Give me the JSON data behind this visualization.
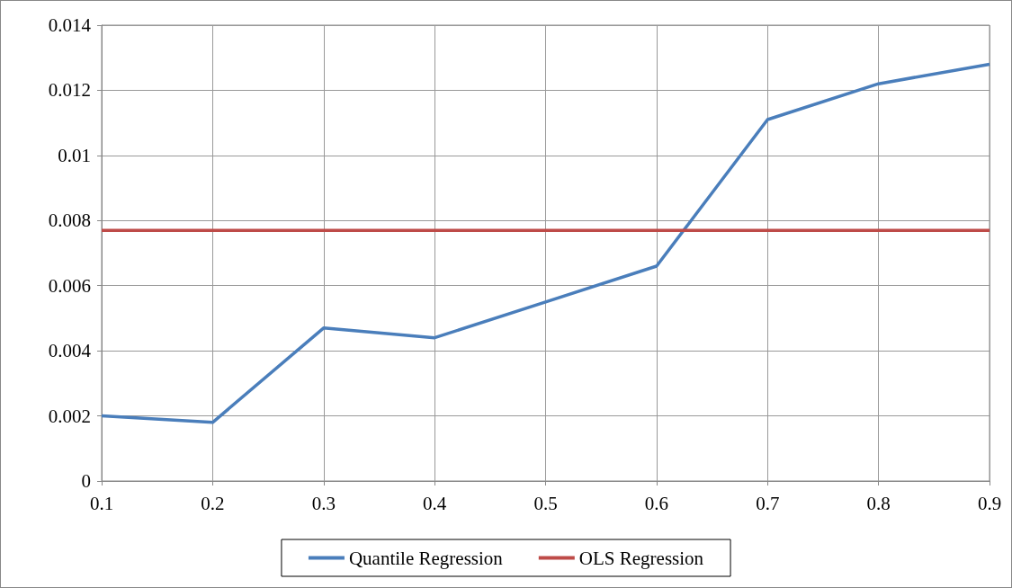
{
  "chart_data": {
    "type": "line",
    "x": [
      0.1,
      0.2,
      0.3,
      0.4,
      0.5,
      0.6,
      0.7,
      0.8,
      0.9
    ],
    "series": [
      {
        "name": "Quantile Regression",
        "color": "#4a7ebb",
        "values": [
          0.002,
          0.0018,
          0.0047,
          0.0044,
          0.0055,
          0.0066,
          0.0111,
          0.0122,
          0.0128
        ]
      },
      {
        "name": "OLS Regression",
        "color": "#be4b48",
        "values": [
          0.0077,
          0.0077,
          0.0077,
          0.0077,
          0.0077,
          0.0077,
          0.0077,
          0.0077,
          0.0077
        ]
      }
    ],
    "xlim": [
      0.1,
      0.9
    ],
    "xticks": [
      0.1,
      0.2,
      0.3,
      0.4,
      0.5,
      0.6,
      0.7,
      0.8,
      0.9
    ],
    "ylim": [
      0,
      0.014
    ],
    "yticks": [
      0,
      0.002,
      0.004,
      0.006,
      0.008,
      0.01,
      0.012,
      0.014
    ],
    "grid": true,
    "legend": "bottom",
    "marker": "none",
    "line_style": "solid"
  }
}
